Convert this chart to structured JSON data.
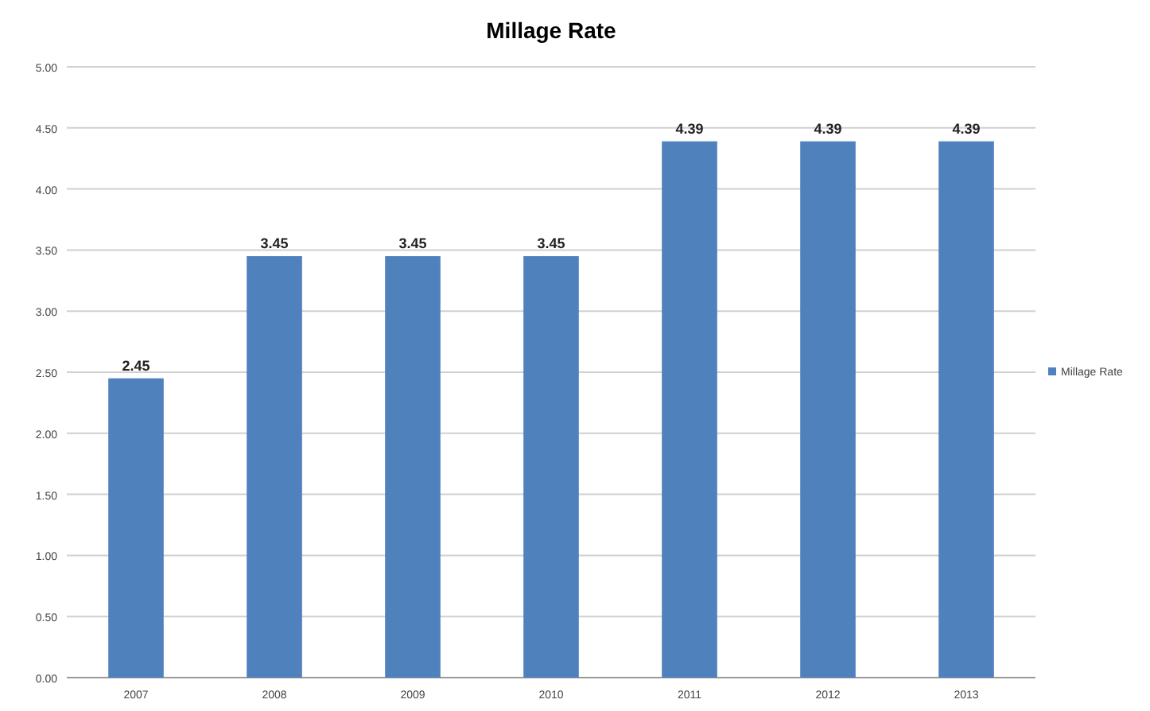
{
  "chart_data": {
    "type": "bar",
    "title": "Millage Rate",
    "categories": [
      "2007",
      "2008",
      "2009",
      "2010",
      "2011",
      "2012",
      "2013"
    ],
    "series": [
      {
        "name": "Millage Rate",
        "color": "#4f81bd",
        "values": [
          2.45,
          3.45,
          3.45,
          3.45,
          4.39,
          4.39,
          4.39
        ]
      }
    ],
    "ylim": [
      0,
      5
    ],
    "yticks": [
      {
        "value": 0,
        "label": "0.00"
      },
      {
        "value": 0.5,
        "label": "0.50"
      },
      {
        "value": 1,
        "label": "1.00"
      },
      {
        "value": 1.5,
        "label": "1.50"
      },
      {
        "value": 2,
        "label": "2.00"
      },
      {
        "value": 2.5,
        "label": "2.50"
      },
      {
        "value": 3,
        "label": "3.00"
      },
      {
        "value": 3.5,
        "label": "3.50"
      },
      {
        "value": 4,
        "label": "4.00"
      },
      {
        "value": 4.5,
        "label": "4.50"
      },
      {
        "value": 5,
        "label": "5.00"
      }
    ],
    "grid": "y",
    "legend": "right",
    "data_labels": true
  }
}
